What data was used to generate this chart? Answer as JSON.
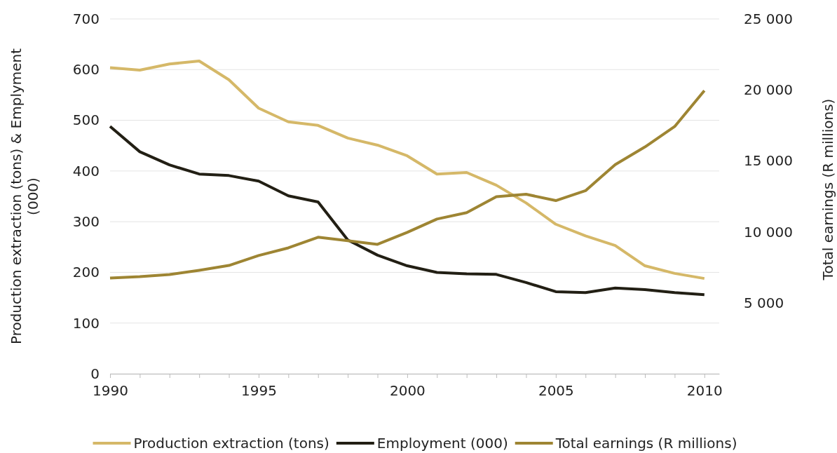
{
  "chart_data": {
    "type": "line",
    "ylabel": "Production extraction (tons) & Emplyment (000)",
    "y2label": "Total earnings (R millions)",
    "x": [
      1990,
      1991,
      1992,
      1993,
      1994,
      1995,
      1996,
      1997,
      1998,
      1999,
      2000,
      2001,
      2002,
      2003,
      2004,
      2005,
      2006,
      2007,
      2008,
      2009,
      2010
    ],
    "series": [
      {
        "name": "Production extraction (tons)",
        "color": "#d5b868",
        "values": [
          604,
          599,
          611,
          617,
          580,
          524,
          497,
          490,
          465,
          451,
          430,
          394,
          397,
          372,
          337,
          295,
          272,
          253,
          213,
          198,
          188
        ]
      },
      {
        "name": "Employment (000)",
        "color": "#221f14",
        "values": [
          488,
          438,
          412,
          394,
          391,
          380,
          351,
          339,
          264,
          234,
          213,
          200,
          197,
          196,
          180,
          162,
          160,
          169,
          166,
          160,
          156
        ]
      },
      {
        "name": "Total earnings (R millions)",
        "color": "#9e8533",
        "axis": "y2",
        "values": [
          6740,
          6840,
          6990,
          7290,
          7630,
          8330,
          8870,
          9620,
          9370,
          9120,
          9960,
          10900,
          11350,
          12480,
          12650,
          12200,
          12900,
          14740,
          15980,
          17420,
          19950
        ]
      }
    ],
    "xlim": [
      1990,
      2010.5
    ],
    "xticks": [
      1990,
      {
        "value": 1991,
        "label": null
      },
      {
        "value": 1992,
        "label": null
      },
      {
        "value": 1993,
        "label": null
      },
      {
        "value": 1994,
        "label": null
      },
      1995,
      {
        "value": 1996,
        "label": null
      },
      {
        "value": 1997,
        "label": null
      },
      {
        "value": 1998,
        "label": null
      },
      {
        "value": 1999,
        "label": null
      },
      2000,
      {
        "value": 2001,
        "label": null
      },
      {
        "value": 2002,
        "label": null
      },
      {
        "value": 2003,
        "label": null
      },
      {
        "value": 2004,
        "label": null
      },
      2005,
      {
        "value": 2006,
        "label": null
      },
      {
        "value": 2007,
        "label": null
      },
      {
        "value": 2008,
        "label": null
      },
      {
        "value": 2009,
        "label": null
      },
      2010
    ],
    "ylim": [
      0,
      700
    ],
    "yticks": [
      0,
      100,
      200,
      300,
      400,
      500,
      600,
      700
    ],
    "y2lim": [
      0,
      25000
    ],
    "y2ticks": [
      {
        "value": 5000,
        "label": "5 000"
      },
      {
        "value": 10000,
        "label": "10 000"
      },
      {
        "value": 15000,
        "label": "15 000"
      },
      {
        "value": 20000,
        "label": "20 000"
      },
      {
        "value": 25000,
        "label": "25 000"
      }
    ],
    "grid": "y",
    "legend": "bottom",
    "marker": "none",
    "line_style": "solid"
  }
}
